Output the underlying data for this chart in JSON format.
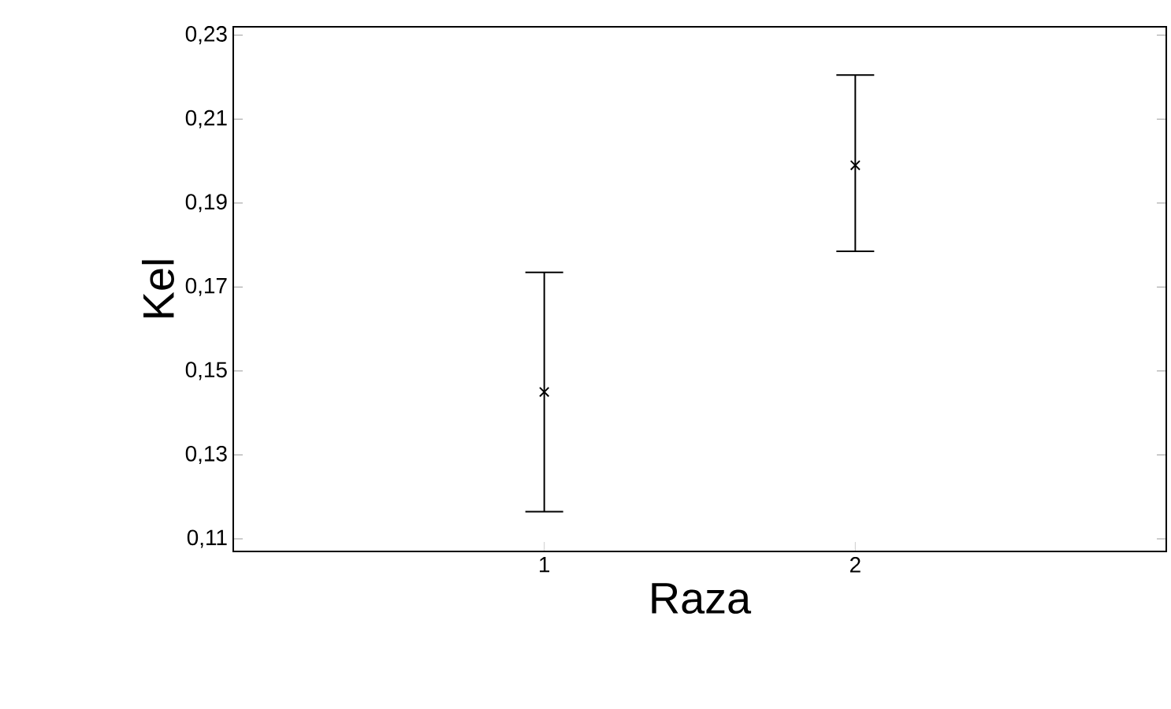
{
  "chart_data": {
    "type": "scatter",
    "xlabel": "Raza",
    "ylabel": "Kel",
    "categories": [
      "1",
      "2"
    ],
    "series": [
      {
        "color": "#000000",
        "values": [
          0.145,
          0.199
        ],
        "errors": [
          [
            0.1165,
            0.1735
          ],
          [
            0.1785,
            0.2205
          ]
        ]
      }
    ],
    "ylim": [
      0.107,
      0.232
    ],
    "yticks": [
      {
        "value": 0.11,
        "label": "0,11"
      },
      {
        "value": 0.13,
        "label": "0,13"
      },
      {
        "value": 0.15,
        "label": "0,15"
      },
      {
        "value": 0.17,
        "label": "0,17"
      },
      {
        "value": 0.19,
        "label": "0,19"
      },
      {
        "value": 0.21,
        "label": "0,21"
      },
      {
        "value": 0.23,
        "label": "0,23"
      }
    ],
    "marker": "cross",
    "grid": false
  }
}
